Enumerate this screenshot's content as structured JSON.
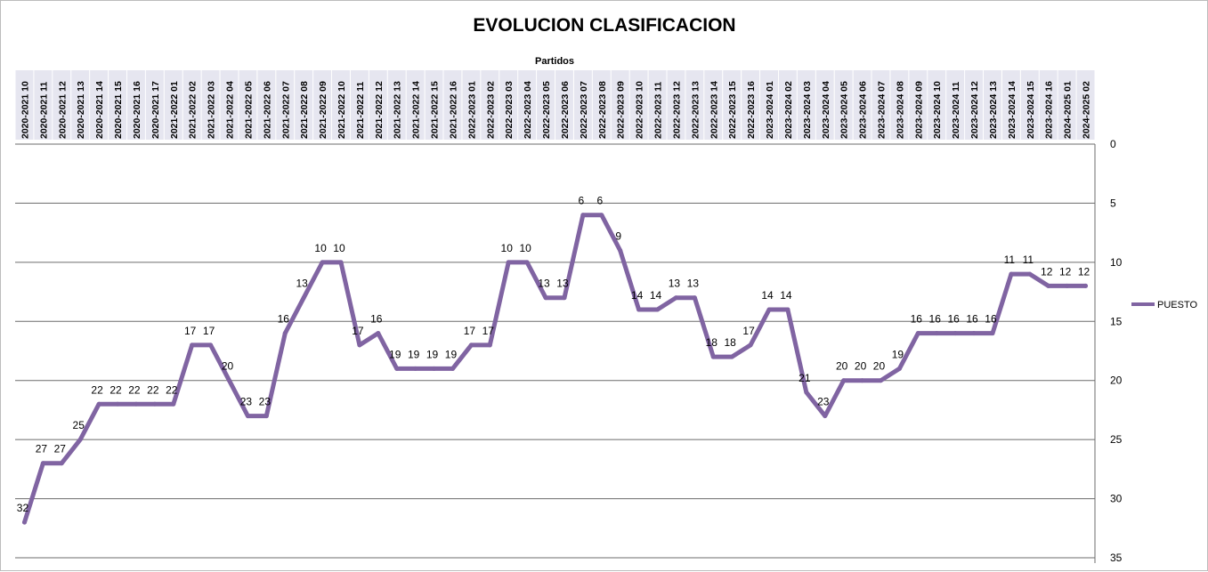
{
  "chart_data": {
    "type": "line",
    "title": "EVOLUCION CLASIFICACION",
    "xlabel": "Partidos",
    "ylabel": "",
    "ylim": [
      0,
      35
    ],
    "y_reversed": true,
    "y_ticks": [
      0,
      5,
      10,
      15,
      20,
      25,
      30,
      35
    ],
    "x_axis_position": "top",
    "y_axis_position": "right",
    "grid": true,
    "legend_position": "right",
    "colors": {
      "series": "#8064A2",
      "grid": "#6b6b6b",
      "category_band": "#e6e6f0"
    },
    "categories": [
      "2020-2021 10",
      "2020-2021 11",
      "2020-2021 12",
      "2020-2021 13",
      "2020-2021 14",
      "2020-2021 15",
      "2020-2021 16",
      "2020-2021 17",
      "2021-2022 01",
      "2021-2022 02",
      "2021-2022 03",
      "2021-2022 04",
      "2021-2022 05",
      "2021-2022 06",
      "2021-2022 07",
      "2021-2022 08",
      "2021-2022 09",
      "2021-2022 10",
      "2021-2022 11",
      "2021-2022 12",
      "2021-2022 13",
      "2021-2022 14",
      "2021-2022 15",
      "2021-2022 16",
      "2022-2023 01",
      "2022-2023 02",
      "2022-2023 03",
      "2022-2023 04",
      "2022-2023 05",
      "2022-2023 06",
      "2022-2023 07",
      "2022-2023 08",
      "2022-2023 09",
      "2022-2023 10",
      "2022-2023 11",
      "2022-2023 12",
      "2022-2023 13",
      "2022-2023 14",
      "2022-2023 15",
      "2022-2023 16",
      "2023-2024 01",
      "2023-2024 02",
      "2023-2024 03",
      "2023-2024 04",
      "2023-2024 05",
      "2023-2024 06",
      "2023-2024 07",
      "2023-2024 08",
      "2023-2024 09",
      "2023-2024 10",
      "2023-2024 11",
      "2023-2024 12",
      "2023-2024 13",
      "2023-2024 14",
      "2023-2024 15",
      "2023-2024 16",
      "2024-2025 01",
      "2024-2025 02"
    ],
    "series": [
      {
        "name": "PUESTO",
        "values": [
          32,
          27,
          27,
          25,
          22,
          22,
          22,
          22,
          22,
          17,
          17,
          20,
          23,
          23,
          16,
          13,
          10,
          10,
          17,
          16,
          19,
          19,
          19,
          19,
          17,
          17,
          10,
          10,
          13,
          13,
          6,
          6,
          9,
          14,
          14,
          13,
          13,
          18,
          18,
          17,
          14,
          14,
          21,
          23,
          20,
          20,
          20,
          19,
          16,
          16,
          16,
          16,
          16,
          11,
          11,
          12,
          12,
          12
        ]
      }
    ]
  }
}
